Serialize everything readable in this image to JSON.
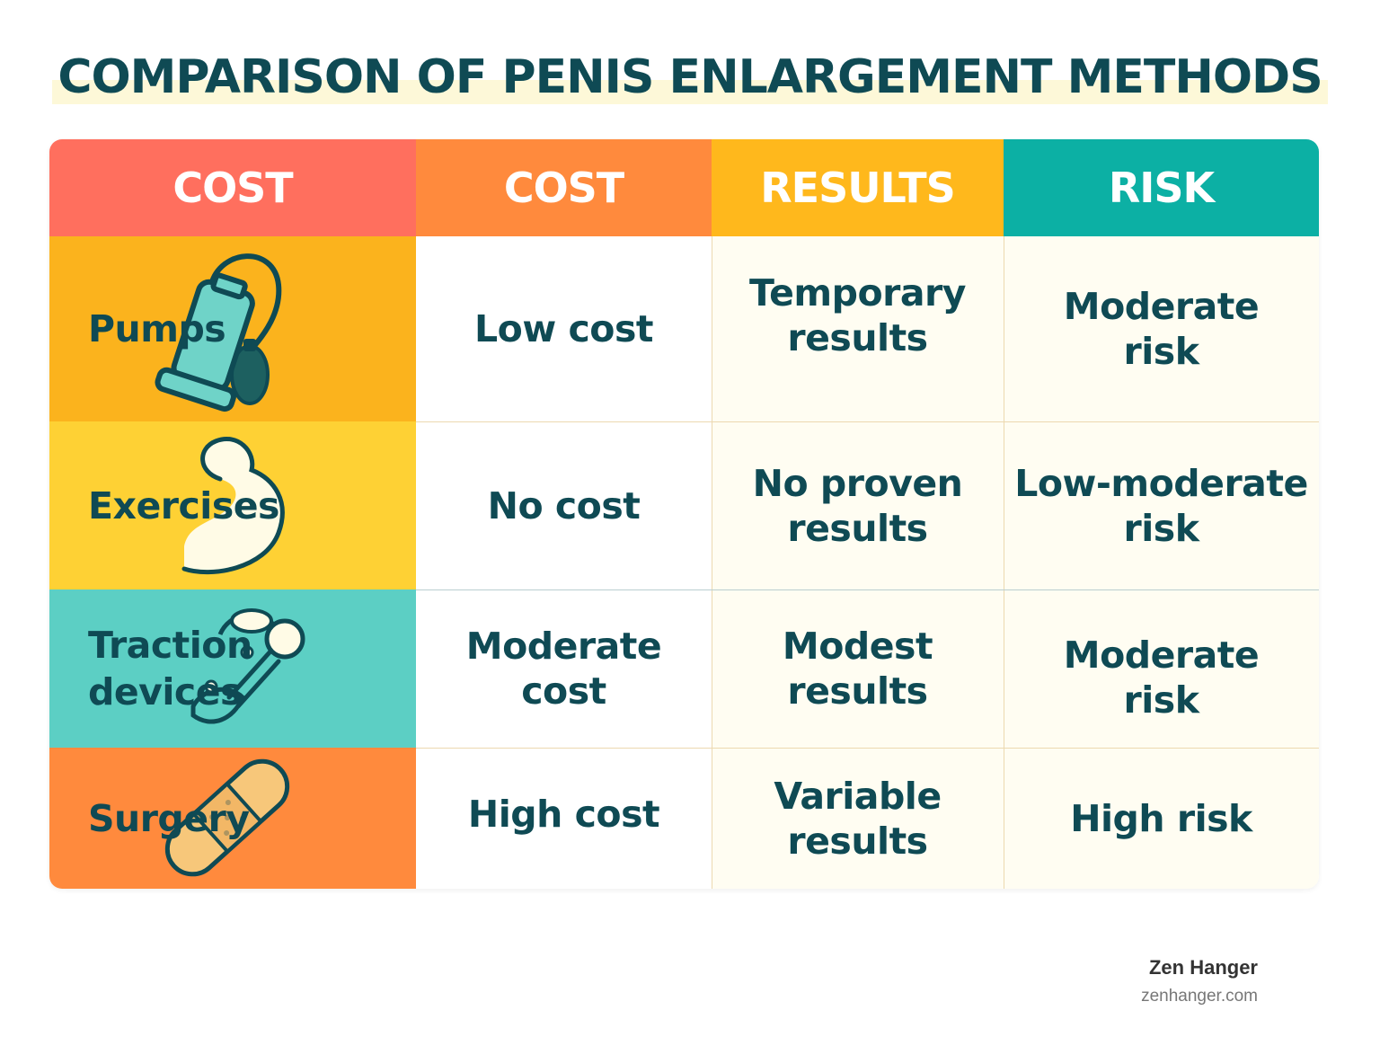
{
  "title": "COMPARISON OF PENIS ENLARGEMENT METHODS",
  "colors": {
    "header_col1": "#ff6f5e",
    "header_col2": "#ff8a3d",
    "header_col3": "#ffb81c",
    "header_col4": "#0cb0a4",
    "row_pumps": "#fbb31d",
    "row_exercises": "#fed134",
    "row_traction": "#5ccfc4",
    "row_surgery": "#ff8a3d",
    "text": "#0f4a54"
  },
  "table": {
    "headers": [
      "COST",
      "COST",
      "RESULTS",
      "RISK"
    ],
    "rows": [
      {
        "method": "Pumps",
        "icon": "pump-icon",
        "cost": "Low cost",
        "results": "Temporary\nresults",
        "risk": "Moderate\nrisk"
      },
      {
        "method": "Exercises",
        "icon": "flexed-arm-icon",
        "cost": "No cost",
        "results": "No proven\nresults",
        "risk": "Low-moderate\nrisk"
      },
      {
        "method": "Traction\ndevices",
        "icon": "traction-device-icon",
        "cost": "Moderate\ncost",
        "results": "Modest\nresults",
        "risk": "Moderate\nrisk"
      },
      {
        "method": "Surgery",
        "icon": "bandage-icon",
        "cost": "High cost",
        "results": "Variable\nresults",
        "risk": "High risk"
      }
    ]
  },
  "footer": {
    "brand": "Zen Hanger",
    "url": "zenhanger.com"
  }
}
